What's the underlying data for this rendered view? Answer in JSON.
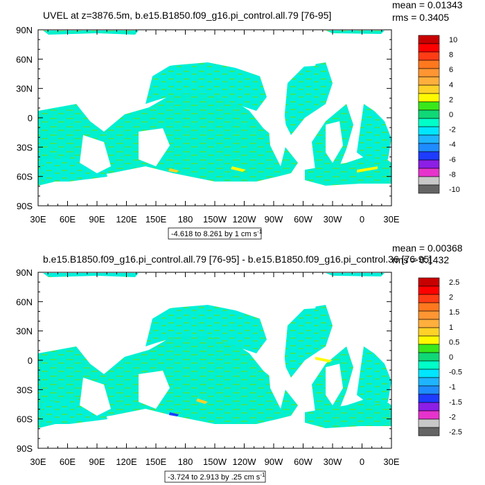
{
  "colors": {
    "ocean": "#00e8c8",
    "land": "#ffffff",
    "palette": [
      "#646464",
      "#c8c8c8",
      "#e633cc",
      "#8c1ee6",
      "#1e3cff",
      "#1e8cff",
      "#1eb4ff",
      "#00e6ff",
      "#00ffc8",
      "#10d876",
      "#38e81a",
      "#fffa00",
      "#ffd228",
      "#ffaf3c",
      "#ff9632",
      "#ff781e",
      "#ff3c14",
      "#ff0000",
      "#c80000"
    ]
  },
  "chart_data": [
    {
      "type": "heatmap",
      "title": "UVEL at z=3876.5m, b.e15.B1850.f09_g16.pi_control.all.79 [76-95]",
      "stats": [
        "mean = 0.01343",
        "rms = 0.3405"
      ],
      "x_ticks": [
        "30E",
        "60E",
        "90E",
        "120E",
        "150E",
        "180",
        "150W",
        "120W",
        "90W",
        "60W",
        "30W",
        "0",
        "30E"
      ],
      "y_ticks": [
        "90N",
        "60N",
        "30N",
        "0",
        "30S",
        "60S",
        "90S"
      ],
      "colorbar_labels": [
        "10",
        "8",
        "6",
        "4",
        "2",
        "0",
        "-2",
        "-4",
        "-6",
        "-8",
        "-10"
      ],
      "info": "-4.618 to 8.261 by 1 cm s",
      "info_sup": "-1"
    },
    {
      "type": "heatmap",
      "title": "b.e15.B1850.f09_g16.pi_control.all.79 [76-95] - b.e15.B1850.f09_g16.pi_control.36 [76-95]",
      "stats": [
        "mean = 0.00368",
        "rms = 0.1432"
      ],
      "x_ticks": [
        "30E",
        "60E",
        "90E",
        "120E",
        "150E",
        "180",
        "150W",
        "120W",
        "90W",
        "60W",
        "30W",
        "0",
        "30E"
      ],
      "y_ticks": [
        "90N",
        "60N",
        "30N",
        "0",
        "30S",
        "60S",
        "90S"
      ],
      "colorbar_labels": [
        "2.5",
        "2",
        "1.5",
        "1",
        "0.5",
        "0",
        "-0.5",
        "-1",
        "-1.5",
        "-2",
        "-2.5"
      ],
      "info": "-3.724 to 2.913 by .25 cm s",
      "info_sup": "-1"
    }
  ]
}
